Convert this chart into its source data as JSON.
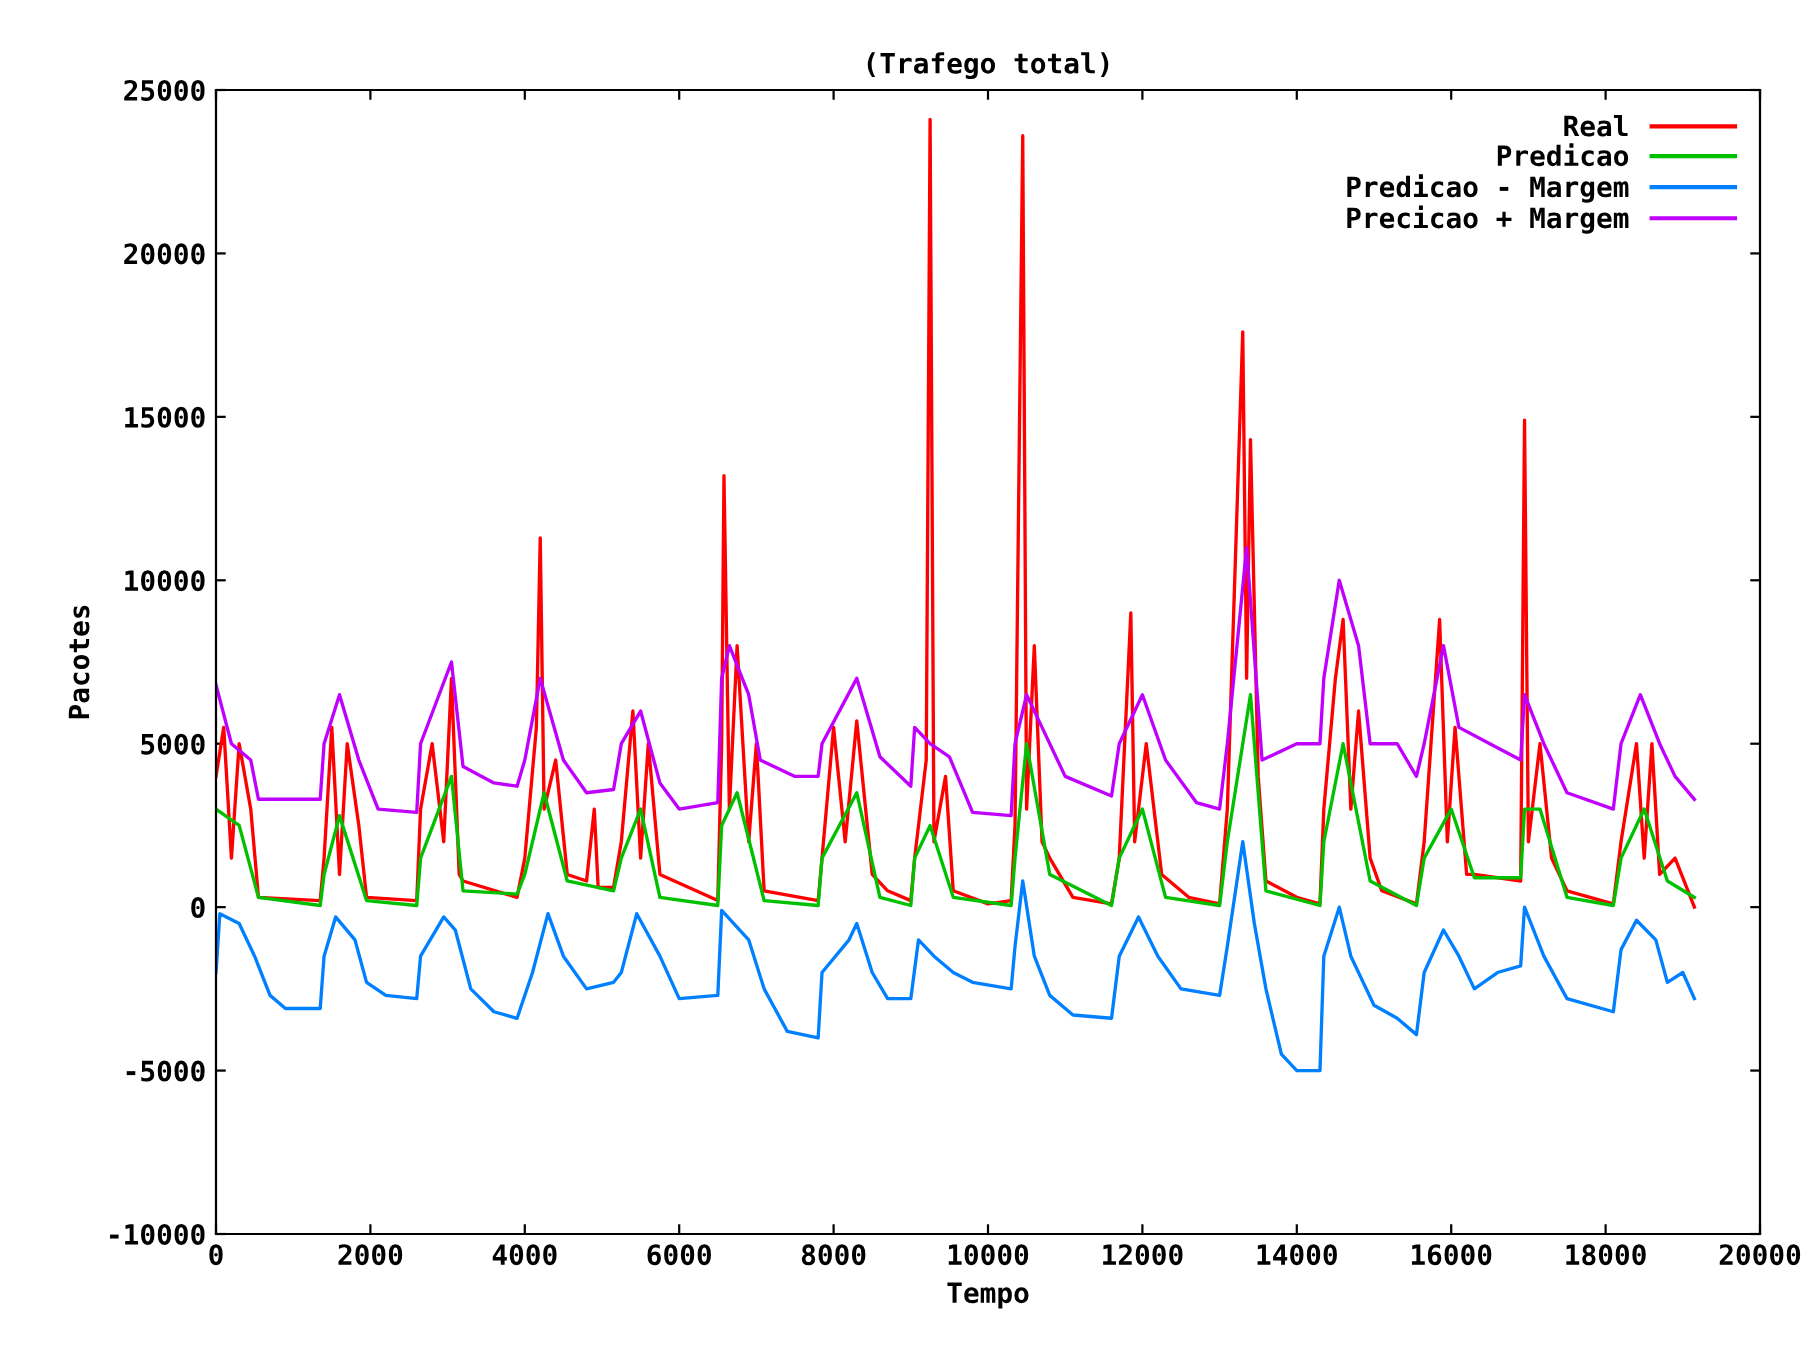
{
  "chart_data": {
    "type": "line",
    "title": "(Trafego total)",
    "xlabel": "Tempo",
    "ylabel": "Pacotes",
    "xlim": [
      0,
      20000
    ],
    "xticks": [
      0,
      2000,
      4000,
      6000,
      8000,
      10000,
      12000,
      14000,
      16000,
      18000,
      20000
    ],
    "ylim": [
      -10000,
      25000
    ],
    "yticks": [
      -10000,
      -5000,
      0,
      5000,
      10000,
      15000,
      20000,
      25000
    ],
    "grid": false,
    "legend": "top right",
    "marker": "none",
    "line_style": "solid",
    "series": [
      {
        "name": "Real",
        "color": "#ff0000",
        "x": [
          0,
          100,
          200,
          300,
          450,
          550,
          1350,
          1400,
          1500,
          1600,
          1700,
          1850,
          1950,
          2600,
          2650,
          2800,
          2950,
          3050,
          3150,
          3200,
          3900,
          4000,
          4150,
          4200,
          4250,
          4400,
          4550,
          4800,
          4900,
          4950,
          5150,
          5250,
          5400,
          5500,
          5600,
          5750,
          6500,
          6550,
          6580,
          6650,
          6750,
          6900,
          7000,
          7100,
          7800,
          7850,
          8000,
          8150,
          8300,
          8500,
          8700,
          9000,
          9050,
          9200,
          9250,
          9300,
          9450,
          9550,
          10000,
          10300,
          10350,
          10450,
          10500,
          10600,
          10700,
          10800,
          11100,
          11600,
          11700,
          11850,
          11900,
          12050,
          12250,
          12600,
          13000,
          13100,
          13300,
          13350,
          13400,
          13500,
          13600,
          14000,
          14300,
          14350,
          14500,
          14600,
          14700,
          14800,
          14950,
          15100,
          15550,
          15650,
          15850,
          15950,
          16050,
          16200,
          16300,
          16900,
          16950,
          17000,
          17150,
          17300,
          17500,
          18100,
          18200,
          18400,
          18500,
          18600,
          18700,
          18900,
          19150
        ],
        "values": [
          4000,
          5500,
          1500,
          5000,
          3000,
          300,
          200,
          1500,
          5500,
          1000,
          5000,
          2500,
          300,
          200,
          3000,
          5000,
          2000,
          7000,
          1000,
          800,
          300,
          1500,
          5500,
          11300,
          3000,
          4500,
          1000,
          800,
          3000,
          600,
          600,
          2000,
          6000,
          1500,
          5000,
          1000,
          200,
          5000,
          13200,
          3000,
          8000,
          2000,
          5000,
          500,
          200,
          1500,
          5500,
          2000,
          5700,
          1000,
          500,
          200,
          1500,
          4500,
          24100,
          2000,
          4000,
          500,
          100,
          200,
          2500,
          23600,
          3000,
          8000,
          2000,
          1500,
          300,
          100,
          1500,
          9000,
          2000,
          5000,
          1000,
          300,
          100,
          3000,
          17600,
          7000,
          14300,
          4000,
          800,
          300,
          100,
          3000,
          7000,
          8800,
          3000,
          6000,
          1500,
          500,
          100,
          2000,
          8800,
          2000,
          5500,
          1000,
          1000,
          800,
          14900,
          2000,
          5000,
          1500,
          500,
          100,
          2000,
          5000,
          1500,
          5000,
          1000,
          1500,
          0
        ]
      },
      {
        "name": "Predicao",
        "color": "#00c000",
        "x": [
          0,
          300,
          550,
          1350,
          1400,
          1600,
          1950,
          2600,
          2650,
          3050,
          3200,
          3900,
          4000,
          4250,
          4550,
          5150,
          5250,
          5500,
          5750,
          6500,
          6550,
          6750,
          7100,
          7800,
          7850,
          8300,
          8600,
          9000,
          9050,
          9250,
          9550,
          10300,
          10350,
          10500,
          10800,
          11600,
          11700,
          12000,
          12300,
          13000,
          13100,
          13400,
          13600,
          14300,
          14350,
          14600,
          14950,
          15550,
          15650,
          16000,
          16300,
          16900,
          16950,
          17150,
          17500,
          18100,
          18200,
          18500,
          18800,
          19150
        ],
        "values": [
          3000,
          2500,
          300,
          50,
          1000,
          2800,
          200,
          50,
          1500,
          4000,
          500,
          400,
          1000,
          3500,
          800,
          500,
          1500,
          3000,
          300,
          50,
          2500,
          3500,
          200,
          50,
          1500,
          3500,
          300,
          50,
          1500,
          2500,
          300,
          50,
          1500,
          5000,
          1000,
          50,
          1500,
          3000,
          300,
          50,
          2000,
          6500,
          500,
          50,
          2000,
          5000,
          800,
          50,
          1500,
          3000,
          900,
          900,
          3000,
          3000,
          300,
          50,
          1500,
          3000,
          800,
          300
        ]
      },
      {
        "name": "Predicao - Margem",
        "color": "#0080ff",
        "x": [
          0,
          50,
          300,
          500,
          700,
          900,
          1350,
          1400,
          1550,
          1800,
          1950,
          2200,
          2600,
          2650,
          2950,
          3100,
          3300,
          3600,
          3900,
          4100,
          4300,
          4500,
          4800,
          5150,
          5250,
          5450,
          5750,
          6000,
          6500,
          6550,
          6900,
          7100,
          7400,
          7800,
          7850,
          8200,
          8300,
          8500,
          8700,
          9000,
          9100,
          9300,
          9550,
          9800,
          10300,
          10350,
          10450,
          10600,
          10800,
          11100,
          11600,
          11700,
          11950,
          12200,
          12500,
          13000,
          13100,
          13300,
          13450,
          13600,
          13800,
          14000,
          14300,
          14350,
          14550,
          14700,
          15000,
          15300,
          15550,
          15650,
          15900,
          16100,
          16300,
          16600,
          16900,
          16950,
          17200,
          17500,
          18100,
          18200,
          18400,
          18650,
          18800,
          19000,
          19150
        ],
        "values": [
          -2000,
          -200,
          -500,
          -1500,
          -2700,
          -3100,
          -3100,
          -1500,
          -300,
          -1000,
          -2300,
          -2700,
          -2800,
          -1500,
          -300,
          -700,
          -2500,
          -3200,
          -3400,
          -2000,
          -200,
          -1500,
          -2500,
          -2300,
          -2000,
          -200,
          -1500,
          -2800,
          -2700,
          -100,
          -1000,
          -2500,
          -3800,
          -4000,
          -2000,
          -1000,
          -500,
          -2000,
          -2800,
          -2800,
          -1000,
          -1500,
          -2000,
          -2300,
          -2500,
          -1200,
          800,
          -1500,
          -2700,
          -3300,
          -3400,
          -1500,
          -300,
          -1500,
          -2500,
          -2700,
          -1200,
          2000,
          -500,
          -2500,
          -4500,
          -5000,
          -5000,
          -1500,
          0,
          -1500,
          -3000,
          -3400,
          -3900,
          -2000,
          -700,
          -1500,
          -2500,
          -2000,
          -1800,
          0,
          -1500,
          -2800,
          -3200,
          -1300,
          -400,
          -1000,
          -2300,
          -2000,
          -2800
        ]
      },
      {
        "name": "Precicao + Margem",
        "color": "#c000ff",
        "x": [
          0,
          200,
          450,
          550,
          1350,
          1400,
          1600,
          1850,
          2100,
          2600,
          2650,
          3050,
          3200,
          3600,
          3900,
          4000,
          4200,
          4500,
          4800,
          5150,
          5250,
          5500,
          5750,
          6000,
          6500,
          6550,
          6650,
          6900,
          7050,
          7500,
          7800,
          7850,
          8300,
          8600,
          9000,
          9050,
          9250,
          9500,
          9800,
          10300,
          10350,
          10500,
          10700,
          11000,
          11600,
          11700,
          12000,
          12300,
          12700,
          13000,
          13100,
          13350,
          13550,
          14000,
          14300,
          14350,
          14550,
          14800,
          14950,
          15300,
          15550,
          15650,
          15900,
          16100,
          16500,
          16900,
          16950,
          17200,
          17500,
          18100,
          18200,
          18450,
          18700,
          18900,
          19150
        ],
        "values": [
          6800,
          5000,
          4500,
          3300,
          3300,
          5000,
          6500,
          4500,
          3000,
          2900,
          5000,
          7500,
          4300,
          3800,
          3700,
          4500,
          7000,
          4500,
          3500,
          3600,
          5000,
          6000,
          3800,
          3000,
          3200,
          7000,
          8000,
          6500,
          4500,
          4000,
          4000,
          5000,
          7000,
          4600,
          3700,
          5500,
          5000,
          4600,
          2900,
          2800,
          5000,
          6500,
          5500,
          4000,
          3400,
          5000,
          6500,
          4500,
          3200,
          3000,
          5000,
          11000,
          4500,
          5000,
          5000,
          7000,
          10000,
          8000,
          5000,
          5000,
          4000,
          5000,
          8000,
          5500,
          5000,
          4500,
          6500,
          5000,
          3500,
          3000,
          5000,
          6500,
          5000,
          4000,
          3300
        ]
      }
    ]
  }
}
